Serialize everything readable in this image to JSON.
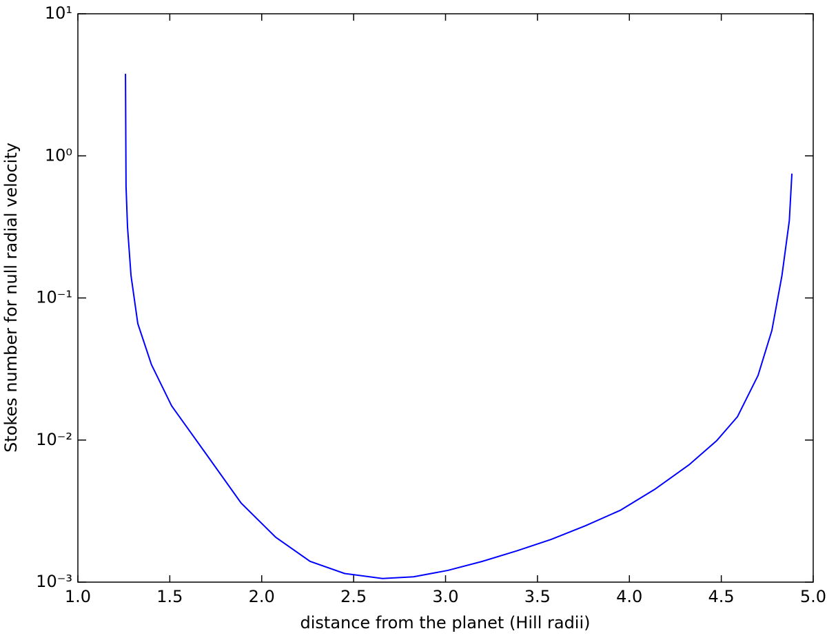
{
  "chart_data": {
    "type": "line",
    "xlabel": "distance from the planet (Hill radii)",
    "ylabel": "Stokes number for null radial velocity",
    "ylog": true,
    "grid": false,
    "xlim": [
      1,
      5
    ],
    "xticks": [
      {
        "value": 1,
        "label": "1.0"
      },
      1.5,
      {
        "value": 2,
        "label": "2.0"
      },
      2.5,
      {
        "value": 3,
        "label": "3.0"
      },
      3.5,
      {
        "value": 4,
        "label": "4.0"
      },
      4.5,
      {
        "value": 5,
        "label": "5.0"
      }
    ],
    "ylim": [
      0.001,
      10
    ],
    "yticks": [
      {
        "value": 10,
        "label": "10¹"
      },
      {
        "value": 1,
        "label": "10⁰"
      },
      {
        "value": 0.1,
        "label": "10⁻¹"
      },
      {
        "value": 0.01,
        "label": "10⁻²"
      },
      {
        "value": 0.001,
        "label": "10⁻³"
      }
    ],
    "series": [
      {
        "color": "#0000ff",
        "x": [
          1.259,
          1.262,
          1.27,
          1.289,
          1.326,
          1.4,
          1.51,
          1.7,
          1.888,
          2.076,
          2.263,
          2.451,
          2.657,
          2.826,
          3.013,
          3.2,
          3.388,
          3.575,
          3.763,
          3.95,
          4.138,
          4.325,
          4.475,
          4.588,
          4.7,
          4.775,
          4.83,
          4.87,
          4.884
        ],
        "values": [
          3.78,
          0.61,
          0.316,
          0.144,
          0.066,
          0.034,
          0.0174,
          0.0079,
          0.0036,
          0.00207,
          0.0014,
          0.00115,
          0.00106,
          0.00109,
          0.00121,
          0.0014,
          0.00166,
          0.002,
          0.0025,
          0.0032,
          0.0045,
          0.0067,
          0.0099,
          0.0146,
          0.0285,
          0.059,
          0.144,
          0.35,
          0.75
        ]
      }
    ]
  }
}
